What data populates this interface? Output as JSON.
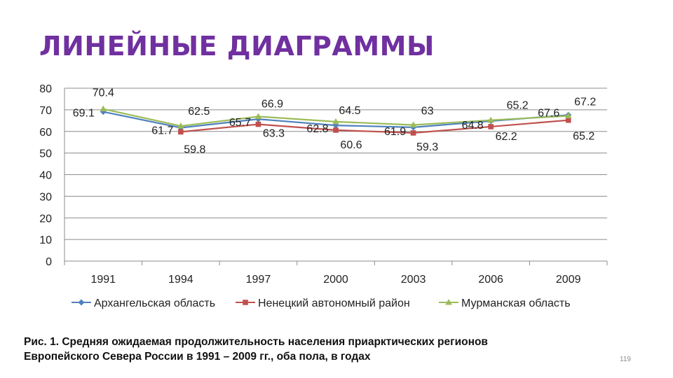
{
  "slide": {
    "title": "ЛИНЕЙНЫЕ ДИАГРАММЫ",
    "caption_line1": "Рис. 1. Средняя ожидаемая продолжительность населения приарктических регионов",
    "caption_line2": "Европейского Севера России в 1991 – 2009 гг., оба пола, в годах",
    "page_number": "119"
  },
  "chart_data": {
    "type": "line",
    "title": "",
    "xlabel": "",
    "ylabel": "",
    "categories": [
      "1991",
      "1994",
      "1997",
      "2000",
      "2003",
      "2006",
      "2009"
    ],
    "ylim": [
      0,
      80
    ],
    "yticks": [
      0,
      10,
      20,
      30,
      40,
      50,
      60,
      70,
      80
    ],
    "grid": "horizontal",
    "legend_position": "bottom",
    "series": [
      {
        "name": "Архангельская область",
        "color": "#4f81bd",
        "marker": "diamond",
        "values": [
          69.1,
          61.7,
          65.7,
          62.8,
          61.9,
          64.8,
          67.6
        ],
        "labels": [
          "69.1",
          "61.7",
          "65.7",
          "62.8",
          "61.9",
          "64.8",
          "67.6"
        ]
      },
      {
        "name": "Ненецкий автономный район",
        "color": "#c0504d",
        "marker": "square",
        "values": [
          null,
          59.8,
          63.3,
          60.6,
          59.3,
          62.2,
          65.2
        ],
        "labels": [
          "",
          "59.8",
          "63.3",
          "60.6",
          "59.3",
          "62.2",
          "65.2"
        ]
      },
      {
        "name": "Мурманская область",
        "color": "#9bbb59",
        "marker": "triangle",
        "values": [
          70.4,
          62.5,
          66.9,
          64.5,
          63.0,
          65.2,
          67.2
        ],
        "labels": [
          "70.4",
          "62.5",
          "66.9",
          "64.5",
          "63",
          "65.2",
          "67.2"
        ]
      }
    ]
  }
}
